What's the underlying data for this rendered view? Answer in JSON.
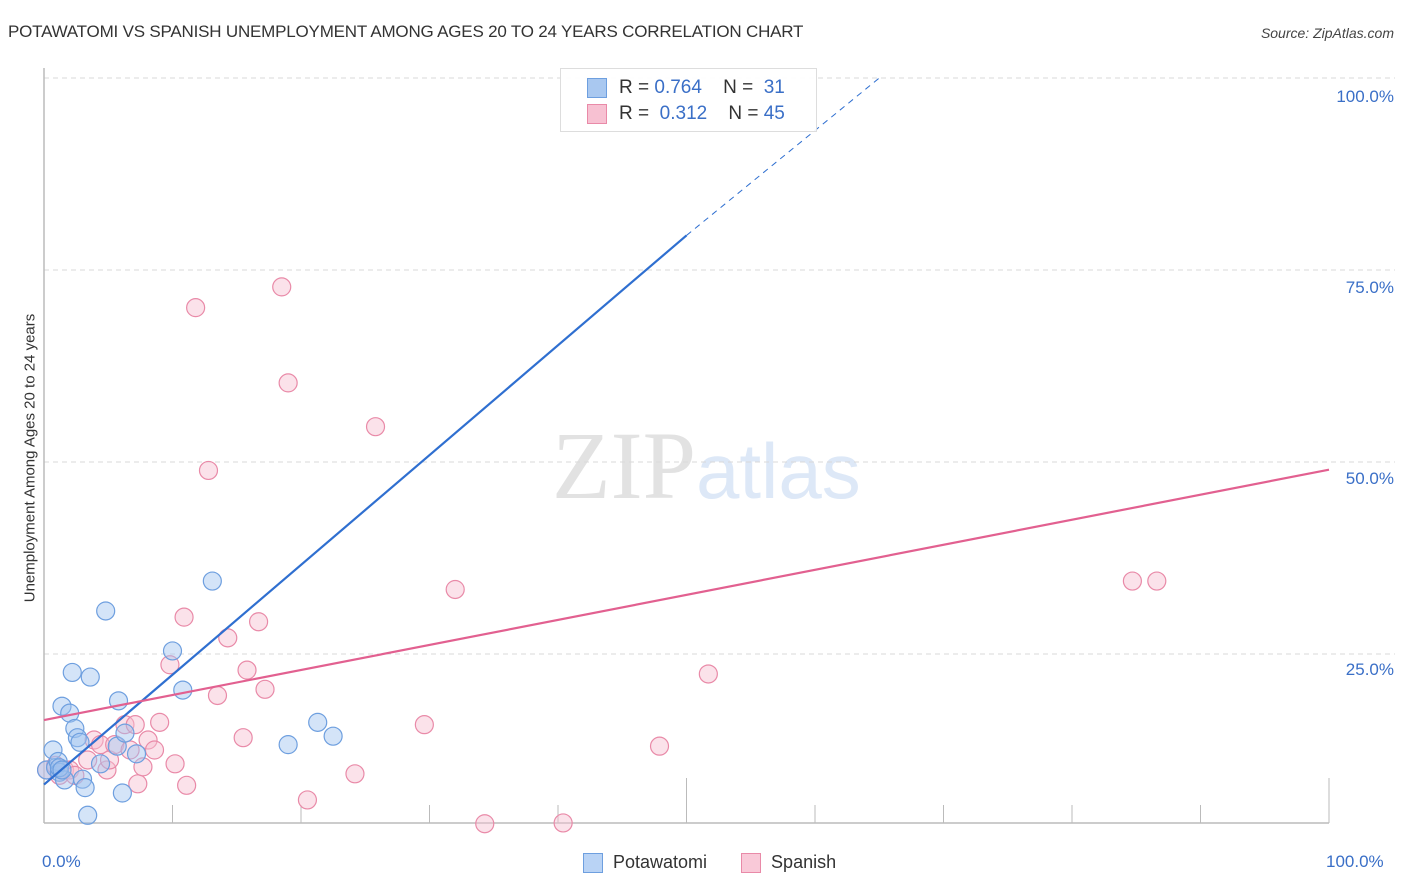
{
  "title": "POTAWATOMI VS SPANISH UNEMPLOYMENT AMONG AGES 20 TO 24 YEARS CORRELATION CHART",
  "source": "Source: ZipAtlas.com",
  "watermark": {
    "zip": "ZIP",
    "atlas": "atlas"
  },
  "legend": {
    "rows": [
      {
        "r_label": "R =",
        "r_value": "0.764",
        "n_label": "N =",
        "n_value": "31",
        "color": "#a9c8f0",
        "border": "#6e9fdf"
      },
      {
        "r_label": "R =",
        "r_value": "0.312",
        "n_label": "N =",
        "n_value": "45",
        "color": "#f7c1d2",
        "border": "#e98aa8"
      }
    ]
  },
  "bottom_legend": [
    {
      "label": "Potawatomi",
      "color": "#b9d3f5",
      "border": "#6e9fdf"
    },
    {
      "label": "Spanish",
      "color": "#f9c9d8",
      "border": "#e98aa8"
    }
  ],
  "colors": {
    "potawatomi_fill": "rgba(160,196,240,0.45)",
    "potawatomi_stroke": "#6e9fdf",
    "potawatomi_line": "#2f6fd0",
    "spanish_fill": "rgba(247,190,208,0.45)",
    "spanish_stroke": "#e98aa8",
    "spanish_line": "#e26090",
    "tick_label": "#3a6fc7",
    "grid": "#d9d9d9"
  },
  "chart_data": {
    "type": "scatter",
    "title": "POTAWATOMI VS SPANISH UNEMPLOYMENT AMONG AGES 20 TO 24 YEARS CORRELATION CHART",
    "xlabel": "",
    "ylabel": "Unemployment Among Ages 20 to 24 years",
    "x_tick_labels": [
      "0.0%",
      "100.0%"
    ],
    "y_tick_labels": [
      "25.0%",
      "50.0%",
      "75.0%",
      "100.0%"
    ],
    "xlim": [
      0,
      100
    ],
    "ylim": [
      3,
      100
    ],
    "grid": true,
    "legend_position": "top-center and bottom",
    "series": [
      {
        "name": "Potawatomi",
        "R": 0.764,
        "N": 31,
        "points": [
          [
            0.2,
            9.9
          ],
          [
            0.7,
            12.5
          ],
          [
            0.9,
            10.2
          ],
          [
            1.1,
            11.0
          ],
          [
            1.2,
            9.6
          ],
          [
            1.4,
            18.2
          ],
          [
            1.6,
            8.6
          ],
          [
            2.0,
            17.3
          ],
          [
            2.2,
            22.6
          ],
          [
            2.4,
            15.3
          ],
          [
            2.6,
            14.1
          ],
          [
            2.8,
            13.5
          ],
          [
            3.0,
            8.7
          ],
          [
            3.2,
            7.6
          ],
          [
            3.4,
            4.0
          ],
          [
            3.6,
            22.0
          ],
          [
            4.8,
            30.6
          ],
          [
            5.7,
            13.0
          ],
          [
            5.8,
            18.9
          ],
          [
            6.3,
            14.7
          ],
          [
            6.1,
            6.9
          ],
          [
            7.2,
            12.0
          ],
          [
            10.0,
            25.4
          ],
          [
            10.8,
            20.3
          ],
          [
            13.1,
            34.5
          ],
          [
            19.0,
            13.2
          ],
          [
            21.3,
            16.1
          ],
          [
            22.5,
            14.3
          ],
          [
            1.2,
            10.2
          ],
          [
            4.4,
            10.7
          ],
          [
            1.4,
            9.9
          ]
        ],
        "trend": {
          "x0": 0,
          "y0": 8.0,
          "x1": 50,
          "y1": 79.5,
          "dashed_to": {
            "x": 65,
            "y": 100
          }
        }
      },
      {
        "name": "Spanish",
        "R": 0.312,
        "N": 45,
        "points": [
          [
            0.2,
            9.9
          ],
          [
            0.9,
            10.5
          ],
          [
            1.2,
            9.2
          ],
          [
            1.6,
            9.9
          ],
          [
            2.0,
            9.9
          ],
          [
            2.4,
            9.2
          ],
          [
            3.4,
            11.2
          ],
          [
            3.9,
            13.8
          ],
          [
            4.4,
            13.2
          ],
          [
            4.9,
            9.9
          ],
          [
            5.1,
            11.2
          ],
          [
            5.5,
            13.2
          ],
          [
            6.3,
            15.8
          ],
          [
            6.7,
            12.5
          ],
          [
            7.3,
            8.1
          ],
          [
            7.7,
            10.3
          ],
          [
            8.1,
            13.8
          ],
          [
            8.6,
            12.5
          ],
          [
            9.0,
            16.1
          ],
          [
            9.8,
            23.6
          ],
          [
            10.2,
            10.7
          ],
          [
            11.1,
            7.9
          ],
          [
            11.8,
            70.1
          ],
          [
            12.8,
            48.9
          ],
          [
            13.5,
            19.6
          ],
          [
            14.3,
            27.1
          ],
          [
            15.5,
            14.1
          ],
          [
            15.8,
            22.9
          ],
          [
            16.7,
            29.2
          ],
          [
            17.2,
            20.4
          ],
          [
            18.5,
            72.8
          ],
          [
            19.0,
            60.3
          ],
          [
            20.5,
            6.0
          ],
          [
            24.2,
            9.4
          ],
          [
            25.8,
            54.6
          ],
          [
            29.6,
            15.8
          ],
          [
            32.0,
            33.4
          ],
          [
            34.3,
            2.9
          ],
          [
            40.4,
            3.0
          ],
          [
            47.9,
            13.0
          ],
          [
            51.7,
            22.4
          ],
          [
            84.7,
            34.5
          ],
          [
            86.6,
            34.5
          ],
          [
            10.9,
            29.8
          ],
          [
            7.1,
            15.8
          ]
        ],
        "trend": {
          "x0": 0,
          "y0": 16.4,
          "x1": 100,
          "y1": 49.0
        }
      }
    ]
  }
}
